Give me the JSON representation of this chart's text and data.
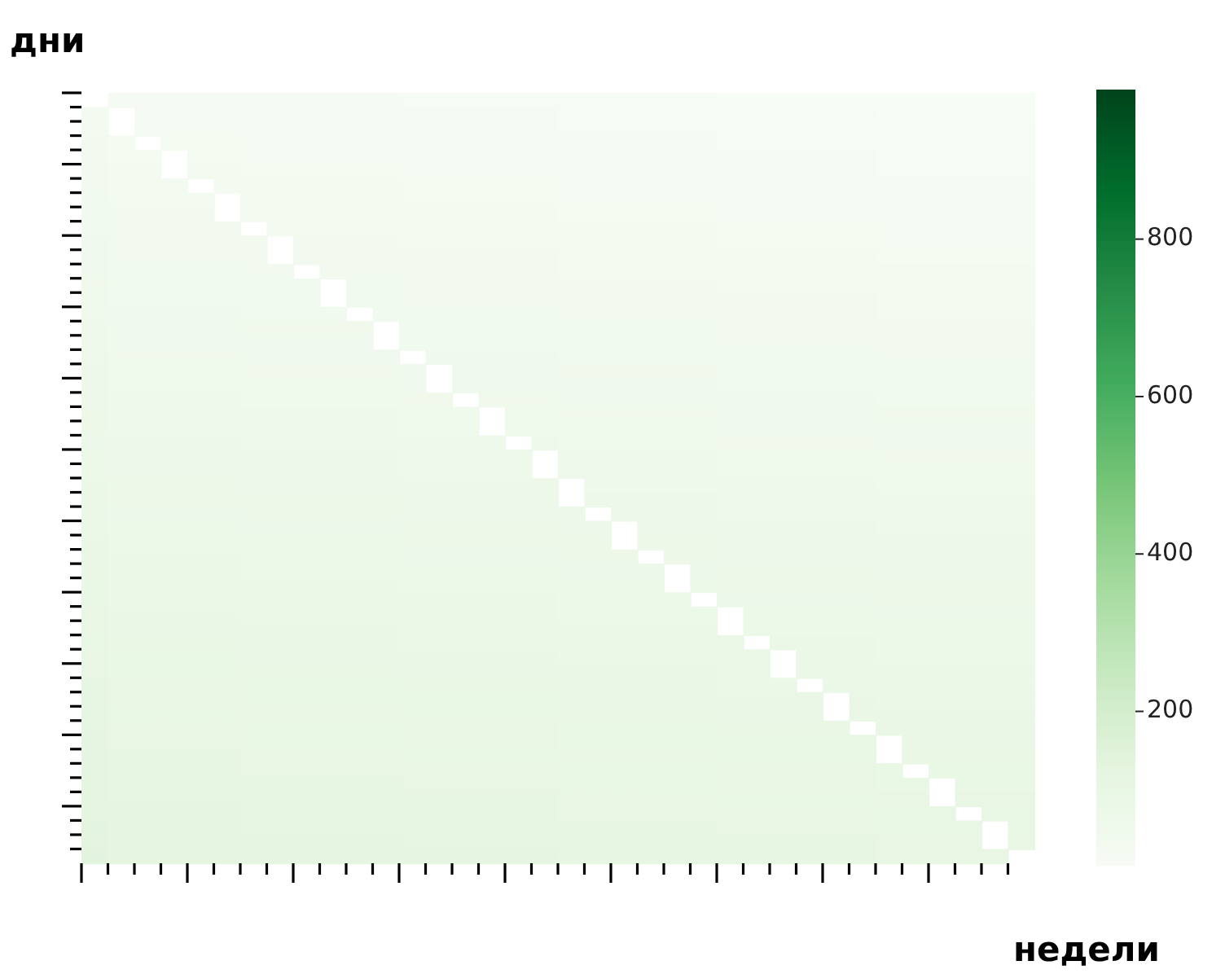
{
  "chart_data": {
    "type": "heatmap",
    "xlabel": "недели",
    "ylabel": "дни",
    "categories": [
      null,
      null,
      null,
      null,
      null,
      null,
      null,
      null,
      null,
      null,
      null,
      null,
      null,
      null,
      null,
      null,
      null,
      null,
      null,
      null,
      null,
      null,
      null,
      null,
      null,
      null,
      null,
      null,
      null,
      null,
      null,
      null,
      null,
      null,
      null,
      null
    ],
    "y_categories": [
      null,
      null,
      null,
      null,
      null,
      null,
      null,
      null,
      null,
      null,
      null,
      null,
      null,
      null,
      null,
      null,
      null,
      null,
      null,
      null,
      null,
      null,
      null,
      null,
      null,
      null,
      null,
      null,
      null,
      null,
      null,
      null,
      null,
      null,
      null,
      null,
      null,
      null,
      null,
      null,
      null,
      null,
      null,
      null,
      null,
      null,
      null,
      null,
      null,
      null,
      null,
      null,
      null,
      null
    ],
    "clim": [
      5,
      990
    ],
    "cticks": [
      200,
      400,
      600,
      800
    ],
    "cells": [
      [
        null,
        20,
        20,
        20,
        20,
        20,
        17,
        17,
        17,
        17,
        17,
        17,
        14,
        14,
        14,
        14,
        14,
        14,
        11,
        11,
        11,
        11,
        11,
        11,
        8,
        8,
        8,
        8,
        8,
        8,
        5,
        5,
        5,
        5,
        5,
        5
      ],
      [
        32,
        null,
        22,
        22,
        22,
        22,
        19,
        19,
        19,
        19,
        19,
        19,
        16,
        16,
        16,
        16,
        16,
        16,
        13,
        13,
        13,
        13,
        13,
        13,
        10,
        10,
        10,
        10,
        10,
        10,
        7,
        7,
        7,
        7,
        7,
        7
      ],
      [
        34,
        null,
        24,
        24,
        24,
        24,
        21,
        21,
        21,
        21,
        21,
        21,
        18,
        18,
        18,
        18,
        18,
        18,
        15,
        15,
        15,
        15,
        15,
        15,
        12,
        12,
        12,
        12,
        12,
        12,
        9,
        9,
        9,
        9,
        9,
        9
      ],
      [
        36,
        26,
        null,
        26,
        26,
        26,
        23,
        23,
        23,
        23,
        23,
        23,
        20,
        20,
        20,
        20,
        20,
        20,
        17,
        17,
        17,
        17,
        17,
        17,
        14,
        14,
        14,
        14,
        14,
        14,
        11,
        11,
        11,
        11,
        11,
        11
      ],
      [
        38,
        28,
        28,
        null,
        28,
        28,
        25,
        25,
        25,
        25,
        25,
        25,
        22,
        22,
        22,
        22,
        22,
        22,
        19,
        19,
        19,
        19,
        19,
        19,
        16,
        16,
        16,
        16,
        16,
        16,
        13,
        13,
        13,
        13,
        13,
        13
      ],
      [
        40,
        30,
        30,
        null,
        30,
        30,
        27,
        27,
        27,
        27,
        27,
        27,
        24,
        24,
        24,
        24,
        24,
        24,
        21,
        21,
        21,
        21,
        21,
        21,
        18,
        18,
        18,
        18,
        18,
        18,
        15,
        15,
        15,
        15,
        15,
        15
      ],
      [
        42,
        32,
        32,
        32,
        null,
        32,
        29,
        29,
        29,
        29,
        29,
        29,
        26,
        26,
        26,
        26,
        26,
        26,
        23,
        23,
        23,
        23,
        23,
        23,
        20,
        20,
        20,
        20,
        20,
        20,
        17,
        17,
        17,
        17,
        17,
        17
      ],
      [
        44,
        34,
        34,
        34,
        34,
        null,
        31,
        31,
        31,
        31,
        31,
        31,
        28,
        28,
        28,
        28,
        28,
        28,
        25,
        25,
        25,
        25,
        25,
        25,
        22,
        22,
        22,
        22,
        22,
        22,
        19,
        19,
        19,
        19,
        19,
        19
      ],
      [
        46,
        36,
        36,
        36,
        36,
        null,
        33,
        33,
        33,
        33,
        33,
        33,
        30,
        30,
        30,
        30,
        30,
        30,
        27,
        27,
        27,
        27,
        27,
        27,
        24,
        24,
        24,
        24,
        24,
        24,
        21,
        21,
        21,
        21,
        21,
        21
      ],
      [
        48,
        38,
        38,
        38,
        38,
        38,
        null,
        35,
        35,
        35,
        35,
        35,
        32,
        32,
        32,
        32,
        32,
        32,
        29,
        29,
        29,
        29,
        29,
        29,
        26,
        26,
        26,
        26,
        26,
        26,
        23,
        23,
        23,
        23,
        23,
        23
      ],
      [
        50,
        40,
        40,
        40,
        40,
        40,
        37,
        null,
        37,
        37,
        37,
        37,
        34,
        34,
        34,
        34,
        34,
        34,
        31,
        31,
        31,
        31,
        31,
        31,
        28,
        28,
        28,
        28,
        28,
        28,
        25,
        25,
        25,
        25,
        25,
        25
      ],
      [
        52,
        42,
        42,
        42,
        42,
        42,
        39,
        null,
        39,
        39,
        39,
        39,
        36,
        36,
        36,
        36,
        36,
        36,
        33,
        33,
        33,
        33,
        33,
        33,
        30,
        30,
        30,
        30,
        30,
        30,
        27,
        27,
        27,
        27,
        27,
        27
      ],
      [
        54,
        44,
        44,
        44,
        44,
        44,
        41,
        41,
        null,
        41,
        41,
        41,
        38,
        38,
        38,
        38,
        38,
        38,
        35,
        35,
        35,
        35,
        35,
        35,
        32,
        32,
        32,
        32,
        32,
        32,
        29,
        29,
        29,
        29,
        29,
        29
      ],
      [
        56,
        46,
        46,
        46,
        46,
        46,
        43,
        43,
        43,
        null,
        43,
        43,
        40,
        40,
        40,
        40,
        40,
        40,
        37,
        37,
        37,
        37,
        37,
        37,
        34,
        34,
        34,
        34,
        34,
        34,
        31,
        31,
        31,
        31,
        31,
        31
      ],
      [
        58,
        48,
        48,
        48,
        48,
        48,
        45,
        45,
        45,
        null,
        45,
        45,
        42,
        42,
        42,
        42,
        42,
        42,
        39,
        39,
        39,
        39,
        39,
        39,
        36,
        36,
        36,
        36,
        36,
        36,
        33,
        33,
        33,
        33,
        33,
        33
      ],
      [
        60,
        50,
        50,
        50,
        50,
        50,
        47,
        47,
        47,
        47,
        null,
        47,
        44,
        44,
        44,
        44,
        44,
        44,
        41,
        41,
        41,
        41,
        41,
        41,
        38,
        38,
        38,
        38,
        38,
        38,
        35,
        35,
        35,
        35,
        35,
        35
      ],
      [
        62,
        52,
        52,
        52,
        52,
        52,
        49,
        49,
        49,
        49,
        49,
        null,
        46,
        46,
        46,
        46,
        46,
        46,
        43,
        43,
        43,
        43,
        43,
        43,
        40,
        40,
        40,
        40,
        40,
        40,
        37,
        37,
        37,
        37,
        37,
        37
      ],
      [
        64,
        54,
        54,
        54,
        54,
        54,
        51,
        51,
        51,
        51,
        51,
        null,
        48,
        48,
        48,
        48,
        48,
        48,
        45,
        45,
        45,
        45,
        45,
        45,
        42,
        42,
        42,
        42,
        42,
        42,
        39,
        39,
        39,
        39,
        39,
        39
      ],
      [
        66,
        56,
        56,
        56,
        56,
        56,
        53,
        53,
        53,
        53,
        53,
        53,
        null,
        50,
        50,
        50,
        50,
        50,
        47,
        47,
        47,
        47,
        47,
        47,
        44,
        44,
        44,
        44,
        44,
        44,
        41,
        41,
        41,
        41,
        41,
        41
      ],
      [
        68,
        58,
        58,
        58,
        58,
        58,
        55,
        55,
        55,
        55,
        55,
        55,
        52,
        null,
        52,
        52,
        52,
        52,
        49,
        49,
        49,
        49,
        49,
        49,
        46,
        46,
        46,
        46,
        46,
        46,
        43,
        43,
        43,
        43,
        43,
        43
      ],
      [
        70,
        60,
        60,
        60,
        60,
        60,
        57,
        57,
        57,
        57,
        57,
        57,
        54,
        null,
        54,
        54,
        54,
        54,
        51,
        51,
        51,
        51,
        51,
        51,
        48,
        48,
        48,
        48,
        48,
        48,
        45,
        45,
        45,
        45,
        45,
        45
      ],
      [
        72,
        62,
        62,
        62,
        62,
        62,
        59,
        59,
        59,
        59,
        59,
        59,
        56,
        56,
        null,
        56,
        56,
        56,
        53,
        53,
        53,
        53,
        53,
        53,
        50,
        50,
        50,
        50,
        50,
        50,
        47,
        47,
        47,
        47,
        47,
        47
      ],
      [
        74,
        64,
        64,
        64,
        64,
        64,
        61,
        61,
        61,
        61,
        61,
        61,
        58,
        58,
        58,
        null,
        58,
        58,
        55,
        55,
        55,
        55,
        55,
        55,
        52,
        52,
        52,
        52,
        52,
        52,
        49,
        49,
        49,
        49,
        49,
        49
      ],
      [
        76,
        66,
        66,
        66,
        66,
        66,
        63,
        63,
        63,
        63,
        63,
        63,
        60,
        60,
        60,
        null,
        60,
        60,
        57,
        57,
        57,
        57,
        57,
        57,
        54,
        54,
        54,
        54,
        54,
        54,
        51,
        51,
        51,
        51,
        51,
        51
      ],
      [
        78,
        68,
        68,
        68,
        68,
        68,
        65,
        65,
        65,
        65,
        65,
        65,
        62,
        62,
        62,
        62,
        null,
        62,
        59,
        59,
        59,
        59,
        59,
        59,
        56,
        56,
        56,
        56,
        56,
        56,
        53,
        53,
        53,
        53,
        53,
        53
      ],
      [
        80,
        70,
        70,
        70,
        70,
        70,
        67,
        67,
        67,
        67,
        67,
        67,
        64,
        64,
        64,
        64,
        64,
        null,
        61,
        61,
        61,
        61,
        61,
        61,
        58,
        58,
        58,
        58,
        58,
        58,
        55,
        55,
        55,
        55,
        55,
        55
      ],
      [
        82,
        72,
        72,
        72,
        72,
        72,
        69,
        69,
        69,
        69,
        69,
        69,
        66,
        66,
        66,
        66,
        66,
        null,
        63,
        63,
        63,
        63,
        63,
        63,
        60,
        60,
        60,
        60,
        60,
        60,
        57,
        57,
        57,
        57,
        57,
        57
      ],
      [
        84,
        74,
        74,
        74,
        74,
        74,
        71,
        71,
        71,
        71,
        71,
        71,
        68,
        68,
        68,
        68,
        68,
        68,
        null,
        65,
        65,
        65,
        65,
        65,
        62,
        62,
        62,
        62,
        62,
        62,
        59,
        59,
        59,
        59,
        59,
        59
      ],
      [
        86,
        76,
        76,
        76,
        76,
        76,
        73,
        73,
        73,
        73,
        73,
        73,
        70,
        70,
        70,
        70,
        70,
        70,
        null,
        67,
        67,
        67,
        67,
        67,
        64,
        64,
        64,
        64,
        64,
        64,
        61,
        61,
        61,
        61,
        61,
        61
      ],
      [
        88,
        78,
        78,
        78,
        78,
        78,
        75,
        75,
        75,
        75,
        75,
        75,
        72,
        72,
        72,
        72,
        72,
        72,
        69,
        null,
        69,
        69,
        69,
        69,
        66,
        66,
        66,
        66,
        66,
        66,
        63,
        63,
        63,
        63,
        63,
        63
      ],
      [
        90,
        80,
        80,
        80,
        80,
        80,
        77,
        77,
        77,
        77,
        77,
        77,
        74,
        74,
        74,
        74,
        74,
        74,
        71,
        71,
        null,
        71,
        71,
        71,
        68,
        68,
        68,
        68,
        68,
        68,
        65,
        65,
        65,
        65,
        65,
        65
      ],
      [
        92,
        82,
        82,
        82,
        82,
        82,
        79,
        79,
        79,
        79,
        79,
        79,
        76,
        76,
        76,
        76,
        76,
        76,
        73,
        73,
        null,
        73,
        73,
        73,
        70,
        70,
        70,
        70,
        70,
        70,
        67,
        67,
        67,
        67,
        67,
        67
      ],
      [
        94,
        84,
        84,
        84,
        84,
        84,
        81,
        81,
        81,
        81,
        81,
        81,
        78,
        78,
        78,
        78,
        78,
        78,
        75,
        75,
        75,
        null,
        75,
        75,
        72,
        72,
        72,
        72,
        72,
        72,
        69,
        69,
        69,
        69,
        69,
        69
      ],
      [
        96,
        86,
        86,
        86,
        86,
        86,
        83,
        83,
        83,
        83,
        83,
        83,
        80,
        80,
        80,
        80,
        80,
        80,
        77,
        77,
        77,
        77,
        null,
        77,
        74,
        74,
        74,
        74,
        74,
        74,
        71,
        71,
        71,
        71,
        71,
        71
      ],
      [
        98,
        88,
        88,
        88,
        88,
        88,
        85,
        85,
        85,
        85,
        85,
        85,
        82,
        82,
        82,
        82,
        82,
        82,
        79,
        79,
        79,
        79,
        null,
        79,
        76,
        76,
        76,
        76,
        76,
        76,
        73,
        73,
        73,
        73,
        73,
        73
      ],
      [
        100,
        90,
        90,
        90,
        90,
        90,
        87,
        87,
        87,
        87,
        87,
        87,
        84,
        84,
        84,
        84,
        84,
        84,
        81,
        81,
        81,
        81,
        81,
        null,
        78,
        78,
        78,
        78,
        78,
        78,
        75,
        75,
        75,
        75,
        75,
        75
      ],
      [
        102,
        92,
        92,
        92,
        92,
        92,
        89,
        89,
        89,
        89,
        89,
        89,
        86,
        86,
        86,
        86,
        86,
        86,
        83,
        83,
        83,
        83,
        83,
        83,
        null,
        80,
        80,
        80,
        80,
        80,
        77,
        77,
        77,
        77,
        77,
        77
      ],
      [
        104,
        94,
        94,
        94,
        94,
        94,
        91,
        91,
        91,
        91,
        91,
        91,
        88,
        88,
        88,
        88,
        88,
        88,
        85,
        85,
        85,
        85,
        85,
        85,
        null,
        82,
        82,
        82,
        82,
        82,
        79,
        79,
        79,
        79,
        79,
        79
      ],
      [
        106,
        96,
        96,
        96,
        96,
        96,
        93,
        93,
        93,
        93,
        93,
        93,
        90,
        90,
        90,
        90,
        90,
        90,
        87,
        87,
        87,
        87,
        87,
        87,
        84,
        null,
        84,
        84,
        84,
        84,
        81,
        81,
        81,
        81,
        81,
        81
      ],
      [
        108,
        98,
        98,
        98,
        98,
        98,
        95,
        95,
        95,
        95,
        95,
        95,
        92,
        92,
        92,
        92,
        92,
        92,
        89,
        89,
        89,
        89,
        89,
        89,
        86,
        86,
        null,
        86,
        86,
        86,
        83,
        83,
        83,
        83,
        83,
        83
      ],
      [
        110,
        100,
        100,
        100,
        100,
        100,
        97,
        97,
        97,
        97,
        97,
        97,
        94,
        94,
        94,
        94,
        94,
        94,
        91,
        91,
        91,
        91,
        91,
        91,
        88,
        88,
        null,
        88,
        88,
        88,
        85,
        85,
        85,
        85,
        85,
        85
      ],
      [
        112,
        102,
        102,
        102,
        102,
        102,
        99,
        99,
        99,
        99,
        99,
        99,
        96,
        96,
        96,
        96,
        96,
        96,
        93,
        93,
        93,
        93,
        93,
        93,
        90,
        90,
        90,
        null,
        90,
        90,
        87,
        87,
        87,
        87,
        87,
        87
      ],
      [
        114,
        104,
        104,
        104,
        104,
        104,
        101,
        101,
        101,
        101,
        101,
        101,
        98,
        98,
        98,
        98,
        98,
        98,
        95,
        95,
        95,
        95,
        95,
        95,
        92,
        92,
        92,
        92,
        null,
        92,
        89,
        89,
        89,
        89,
        89,
        89
      ],
      [
        116,
        106,
        106,
        106,
        106,
        106,
        103,
        103,
        103,
        103,
        103,
        103,
        100,
        100,
        100,
        100,
        100,
        100,
        97,
        97,
        97,
        97,
        97,
        97,
        94,
        94,
        94,
        94,
        null,
        94,
        91,
        91,
        91,
        91,
        91,
        91
      ],
      [
        118,
        108,
        108,
        108,
        108,
        108,
        105,
        105,
        105,
        105,
        105,
        105,
        102,
        102,
        102,
        102,
        102,
        102,
        99,
        99,
        99,
        99,
        99,
        99,
        96,
        96,
        96,
        96,
        96,
        null,
        93,
        93,
        93,
        93,
        93,
        93
      ],
      [
        120,
        110,
        110,
        110,
        110,
        110,
        107,
        107,
        107,
        107,
        107,
        107,
        104,
        104,
        104,
        104,
        104,
        104,
        101,
        101,
        101,
        101,
        101,
        101,
        98,
        98,
        98,
        98,
        98,
        98,
        null,
        95,
        95,
        95,
        95,
        95
      ],
      [
        122,
        112,
        112,
        112,
        112,
        112,
        109,
        109,
        109,
        109,
        109,
        109,
        106,
        106,
        106,
        106,
        106,
        106,
        103,
        103,
        103,
        103,
        103,
        103,
        100,
        100,
        100,
        100,
        100,
        100,
        null,
        97,
        97,
        97,
        97,
        97
      ],
      [
        124,
        114,
        114,
        114,
        114,
        114,
        111,
        111,
        111,
        111,
        111,
        111,
        108,
        108,
        108,
        108,
        108,
        108,
        105,
        105,
        105,
        105,
        105,
        105,
        102,
        102,
        102,
        102,
        102,
        102,
        99,
        null,
        99,
        99,
        99,
        99
      ],
      [
        126,
        116,
        116,
        116,
        116,
        116,
        113,
        113,
        113,
        113,
        113,
        113,
        110,
        110,
        110,
        110,
        110,
        110,
        107,
        107,
        107,
        107,
        107,
        107,
        104,
        104,
        104,
        104,
        104,
        104,
        101,
        101,
        null,
        101,
        101,
        101
      ],
      [
        128,
        118,
        118,
        118,
        118,
        118,
        115,
        115,
        115,
        115,
        115,
        115,
        112,
        112,
        112,
        112,
        112,
        112,
        109,
        109,
        109,
        109,
        109,
        109,
        106,
        106,
        106,
        106,
        106,
        106,
        103,
        103,
        null,
        103,
        103,
        103
      ],
      [
        130,
        120,
        120,
        120,
        120,
        120,
        117,
        117,
        117,
        117,
        117,
        117,
        114,
        114,
        114,
        114,
        114,
        114,
        111,
        111,
        111,
        111,
        111,
        111,
        108,
        108,
        108,
        108,
        108,
        108,
        105,
        105,
        105,
        null,
        105,
        105
      ],
      [
        132,
        122,
        122,
        122,
        122,
        122,
        119,
        119,
        119,
        119,
        119,
        119,
        116,
        116,
        116,
        116,
        116,
        116,
        113,
        113,
        113,
        113,
        113,
        113,
        110,
        110,
        110,
        110,
        110,
        110,
        107,
        107,
        107,
        107,
        null,
        107
      ],
      [
        134,
        124,
        124,
        124,
        124,
        124,
        121,
        121,
        121,
        121,
        121,
        121,
        118,
        118,
        118,
        118,
        118,
        118,
        115,
        115,
        115,
        115,
        115,
        115,
        112,
        112,
        112,
        112,
        112,
        112,
        109,
        109,
        109,
        109,
        null,
        109
      ],
      [
        136,
        126,
        126,
        126,
        126,
        126,
        123,
        123,
        123,
        123,
        123,
        123,
        120,
        120,
        120,
        120,
        120,
        120,
        117,
        117,
        117,
        117,
        117,
        117,
        114,
        114,
        114,
        114,
        114,
        114,
        111,
        111,
        111,
        111,
        111,
        null
      ]
    ]
  }
}
